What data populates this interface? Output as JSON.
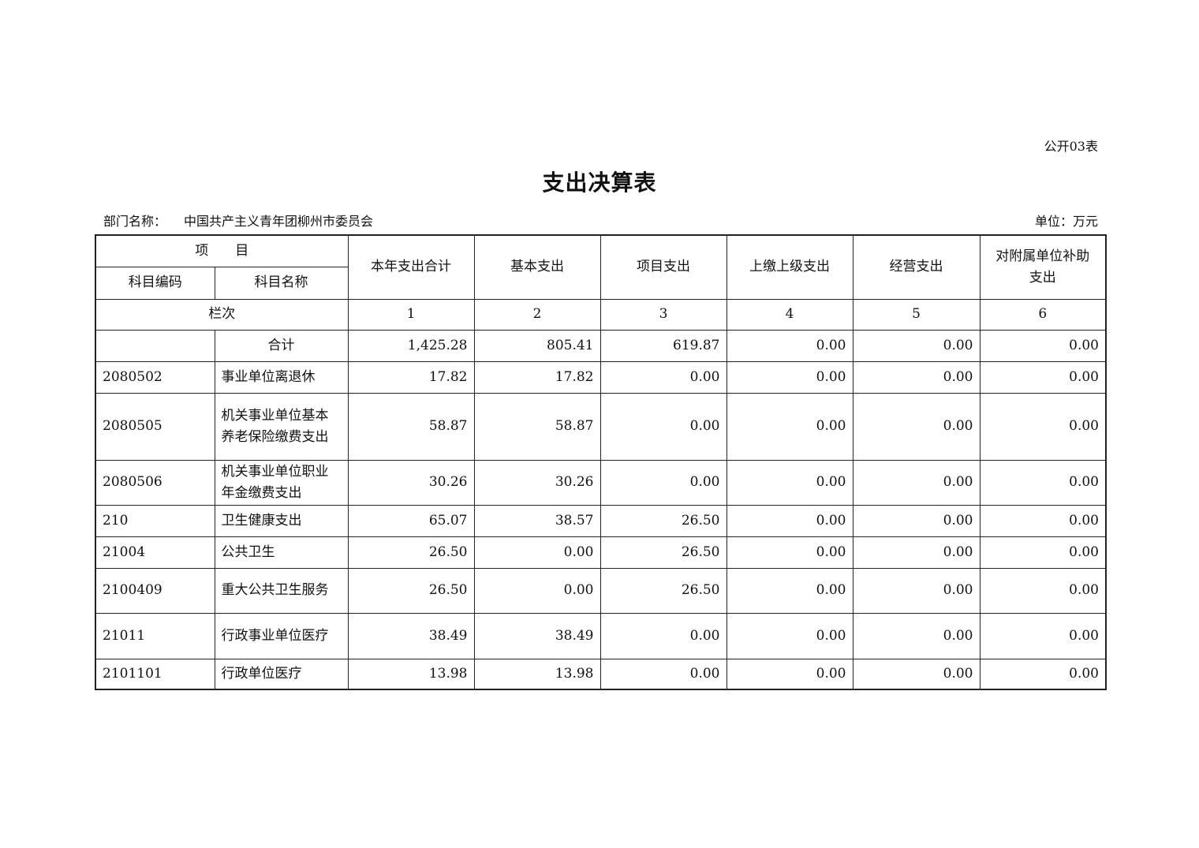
{
  "form_no": "公开03表",
  "title": "支出决算表",
  "dept_label": "部门名称：",
  "dept_name": "中国共产主义青年团柳州市委员会",
  "unit": "单位：万元",
  "headers": {
    "item": "项　　目",
    "code": "科目编码",
    "name": "科目名称",
    "total": "本年支出合计",
    "basic": "基本支出",
    "project": "项目支出",
    "upper": "上缴上级支出",
    "business": "经营支出",
    "subsidy": "对附属单位补助支出",
    "col_label": "栏次",
    "col_numbers": [
      "1",
      "2",
      "3",
      "4",
      "5",
      "6"
    ]
  },
  "rows": [
    {
      "code": "",
      "name": "合计",
      "values": [
        "1,425.28",
        "805.41",
        "619.87",
        "0.00",
        "0.00",
        "0.00"
      ]
    },
    {
      "code": "2080502",
      "name": "事业单位离退休",
      "values": [
        "17.82",
        "17.82",
        "0.00",
        "0.00",
        "0.00",
        "0.00"
      ]
    },
    {
      "code": "2080505",
      "name": "机关事业单位基本养老保险缴费支出",
      "values": [
        "58.87",
        "58.87",
        "0.00",
        "0.00",
        "0.00",
        "0.00"
      ]
    },
    {
      "code": "2080506",
      "name": "机关事业单位职业年金缴费支出",
      "values": [
        "30.26",
        "30.26",
        "0.00",
        "0.00",
        "0.00",
        "0.00"
      ]
    },
    {
      "code": "210",
      "name": "卫生健康支出",
      "values": [
        "65.07",
        "38.57",
        "26.50",
        "0.00",
        "0.00",
        "0.00"
      ]
    },
    {
      "code": "21004",
      "name": "公共卫生",
      "values": [
        "26.50",
        "0.00",
        "26.50",
        "0.00",
        "0.00",
        "0.00"
      ]
    },
    {
      "code": "2100409",
      "name": "重大公共卫生服务",
      "values": [
        "26.50",
        "0.00",
        "26.50",
        "0.00",
        "0.00",
        "0.00"
      ]
    },
    {
      "code": "21011",
      "name": "行政事业单位医疗",
      "values": [
        "38.49",
        "38.49",
        "0.00",
        "0.00",
        "0.00",
        "0.00"
      ]
    },
    {
      "code": "2101101",
      "name": "行政单位医疗",
      "values": [
        "13.98",
        "13.98",
        "0.00",
        "0.00",
        "0.00",
        "0.00"
      ]
    }
  ]
}
